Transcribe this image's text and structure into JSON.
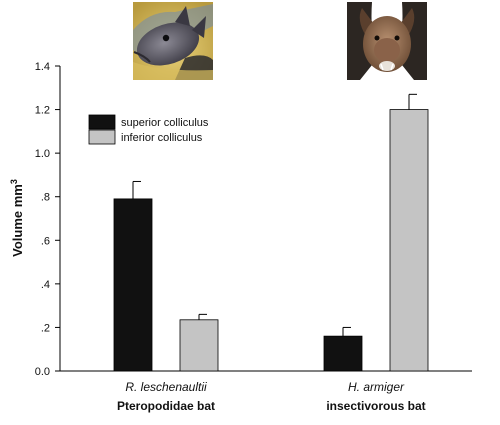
{
  "chart_data": {
    "type": "bar",
    "categories": [
      "R. leschenaultii",
      "H. armiger"
    ],
    "category_groups": [
      "Pteropodidae bat",
      "insectivorous bat"
    ],
    "series": [
      {
        "name": "superior colliculus",
        "color": "#111111",
        "values": [
          0.79,
          0.16
        ],
        "errors": [
          0.08,
          0.04
        ]
      },
      {
        "name": "inferior colliculus",
        "color": "#c4c4c4",
        "values": [
          0.235,
          1.2
        ],
        "errors": [
          0.025,
          0.07
        ]
      }
    ],
    "ylabel": "Volume mm",
    "ylabel_superscript": "3",
    "ylim": [
      0,
      1.4
    ],
    "yticks": [
      {
        "value": 0,
        "label": "0.0"
      },
      {
        "value": 0.2,
        "label": ".2"
      },
      {
        "value": 0.4,
        "label": ".4"
      },
      {
        "value": 0.6,
        "label": ".6"
      },
      {
        "value": 0.8,
        "label": ".8"
      },
      {
        "value": 1.0,
        "label": "1.0"
      },
      {
        "value": 1.2,
        "label": "1.2"
      },
      {
        "value": 1.4,
        "label": "1.4"
      }
    ],
    "legend_position": "top-left",
    "grid": false
  },
  "images": [
    {
      "icon": "fruit-bat-photo"
    },
    {
      "icon": "insectivorous-bat-photo"
    }
  ]
}
